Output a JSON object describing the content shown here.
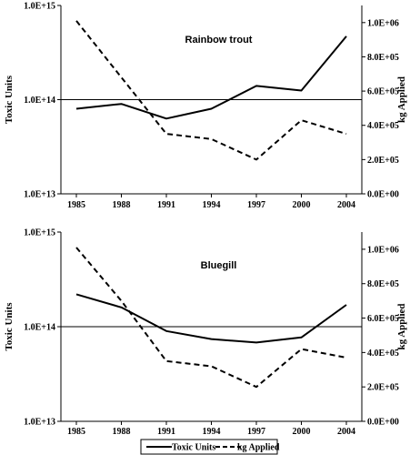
{
  "chart_data": [
    {
      "type": "line",
      "title": "Rainbow trout",
      "x": [
        "1985",
        "1988",
        "1991",
        "1994",
        "1997",
        "2000",
        "2004"
      ],
      "ylabel": "Toxic Units",
      "ylabel_right": "kg Applied",
      "ylim": [
        10000000000000.0,
        1000000000000000.0
      ],
      "y_scale": "log",
      "ylim_right": [
        0,
        1100000
      ],
      "yticks_left": [
        "1.0E+13",
        "1.0E+14",
        "1.0E+15"
      ],
      "yticks_right": [
        "0.0E+00",
        "2.0E+05",
        "4.0E+05",
        "6.0E+05",
        "8.0E+05",
        "1.0E+06"
      ],
      "reference_line": 100000000000000.0,
      "series": [
        {
          "name": "Toxic Units",
          "axis": "left",
          "style": "solid",
          "values": [
            80000000000000.0,
            90000000000000.0,
            63000000000000.0,
            80000000000000.0,
            140000000000000.0,
            125000000000000.0,
            470000000000000.0
          ]
        },
        {
          "name": "kg Applied",
          "axis": "right",
          "style": "dashed",
          "values": [
            1010000,
            680000,
            350000,
            320000,
            200000,
            430000,
            350000
          ]
        }
      ]
    },
    {
      "type": "line",
      "title": "Bluegill",
      "x": [
        "1985",
        "1988",
        "1991",
        "1994",
        "1997",
        "2000",
        "2004"
      ],
      "ylabel": "Toxic Units",
      "ylabel_right": "kg Applied",
      "ylim": [
        10000000000000.0,
        1000000000000000.0
      ],
      "y_scale": "log",
      "ylim_right": [
        0,
        1100000
      ],
      "yticks_left": [
        "1.0E+13",
        "1.0E+14",
        "1.0E+15"
      ],
      "yticks_right": [
        "0.0E+00",
        "2.0E+05",
        "4.0E+05",
        "6.0E+05",
        "8.0E+05",
        "1.0E+06"
      ],
      "reference_line": 100000000000000.0,
      "series": [
        {
          "name": "Toxic Units",
          "axis": "left",
          "style": "solid",
          "values": [
            220000000000000.0,
            160000000000000.0,
            90000000000000.0,
            74000000000000.0,
            68000000000000.0,
            77000000000000.0,
            170000000000000.0
          ]
        },
        {
          "name": "kg Applied",
          "axis": "right",
          "style": "dashed",
          "values": [
            1010000,
            700000,
            350000,
            320000,
            200000,
            420000,
            370000
          ]
        }
      ]
    }
  ],
  "legend": {
    "placement": "bottom",
    "items": [
      {
        "label": "Toxic Units",
        "style": "solid"
      },
      {
        "label": "kg Applied",
        "style": "dashed"
      }
    ]
  }
}
